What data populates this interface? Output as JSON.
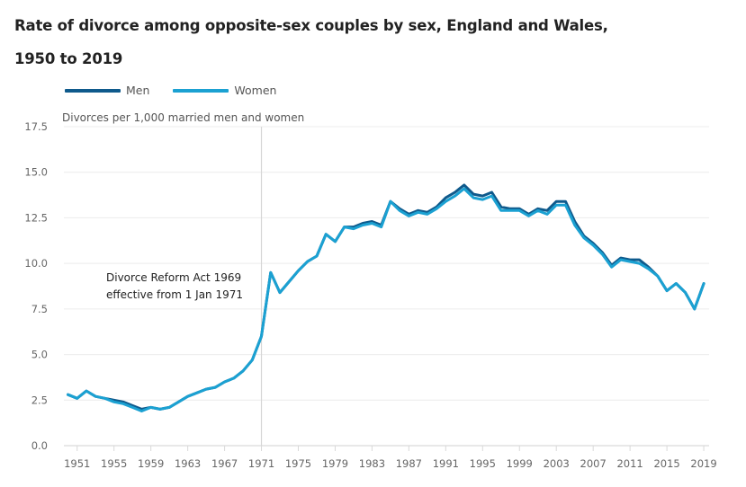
{
  "chart_data": {
    "type": "line",
    "title_line1": "Rate of divorce among opposite-sex couples by sex, England and Wales,",
    "title_line2": "1950 to 2019",
    "ylabel": "Divorces per 1,000 married men and women",
    "xlabel": "",
    "ylim": [
      0,
      17.5
    ],
    "xlim": [
      1950,
      2019
    ],
    "yticks": [
      "0.0",
      "2.5",
      "5.0",
      "7.5",
      "10.0",
      "12.5",
      "15.0",
      "17.5"
    ],
    "xticks": [
      "1951",
      "1955",
      "1959",
      "1963",
      "1967",
      "1971",
      "1975",
      "1979",
      "1983",
      "1987",
      "1991",
      "1995",
      "1999",
      "2003",
      "2007",
      "2011",
      "2015",
      "2019"
    ],
    "grid": true,
    "legend_position": "top-left",
    "annotation": {
      "x": 1971,
      "line1": "Divorce Reform Act 1969",
      "line2": "effective from 1 Jan 1971"
    },
    "x": [
      1950,
      1951,
      1952,
      1953,
      1954,
      1955,
      1956,
      1957,
      1958,
      1959,
      1960,
      1961,
      1962,
      1963,
      1964,
      1965,
      1966,
      1967,
      1968,
      1969,
      1970,
      1971,
      1972,
      1973,
      1974,
      1975,
      1976,
      1977,
      1978,
      1979,
      1980,
      1981,
      1982,
      1983,
      1984,
      1985,
      1986,
      1987,
      1988,
      1989,
      1990,
      1991,
      1992,
      1993,
      1994,
      1995,
      1996,
      1997,
      1998,
      1999,
      2000,
      2001,
      2002,
      2003,
      2004,
      2005,
      2006,
      2007,
      2008,
      2009,
      2010,
      2011,
      2012,
      2013,
      2014,
      2015,
      2016,
      2017,
      2018,
      2019
    ],
    "series": [
      {
        "name": "Men",
        "color": "#0f5a8c",
        "values": [
          2.8,
          2.6,
          3.0,
          2.7,
          2.6,
          2.5,
          2.4,
          2.2,
          2.0,
          2.1,
          2.0,
          2.1,
          2.4,
          2.7,
          2.9,
          3.1,
          3.2,
          3.5,
          3.7,
          4.1,
          4.7,
          6.0,
          9.5,
          8.4,
          9.0,
          9.6,
          10.1,
          10.4,
          11.6,
          11.2,
          12.0,
          12.0,
          12.2,
          12.3,
          12.1,
          13.4,
          13.0,
          12.7,
          12.9,
          12.8,
          13.1,
          13.6,
          13.9,
          14.3,
          13.8,
          13.7,
          13.9,
          13.1,
          13.0,
          13.0,
          12.7,
          13.0,
          12.9,
          13.4,
          13.4,
          12.3,
          11.5,
          11.1,
          10.6,
          9.9,
          10.3,
          10.2,
          10.2,
          9.8,
          9.3,
          8.5,
          8.9,
          8.4,
          7.5,
          8.9
        ]
      },
      {
        "name": "Women",
        "color": "#1ba1d2",
        "values": [
          2.8,
          2.6,
          3.0,
          2.7,
          2.6,
          2.4,
          2.3,
          2.1,
          1.9,
          2.1,
          2.0,
          2.1,
          2.4,
          2.7,
          2.9,
          3.1,
          3.2,
          3.5,
          3.7,
          4.1,
          4.7,
          6.0,
          9.5,
          8.4,
          9.0,
          9.6,
          10.1,
          10.4,
          11.6,
          11.2,
          12.0,
          11.9,
          12.1,
          12.2,
          12.0,
          13.4,
          12.9,
          12.6,
          12.8,
          12.7,
          13.0,
          13.4,
          13.7,
          14.1,
          13.6,
          13.5,
          13.7,
          12.9,
          12.9,
          12.9,
          12.6,
          12.9,
          12.7,
          13.2,
          13.2,
          12.1,
          11.4,
          11.0,
          10.5,
          9.8,
          10.2,
          10.1,
          10.0,
          9.7,
          9.3,
          8.5,
          8.9,
          8.4,
          7.5,
          8.9
        ]
      }
    ]
  }
}
